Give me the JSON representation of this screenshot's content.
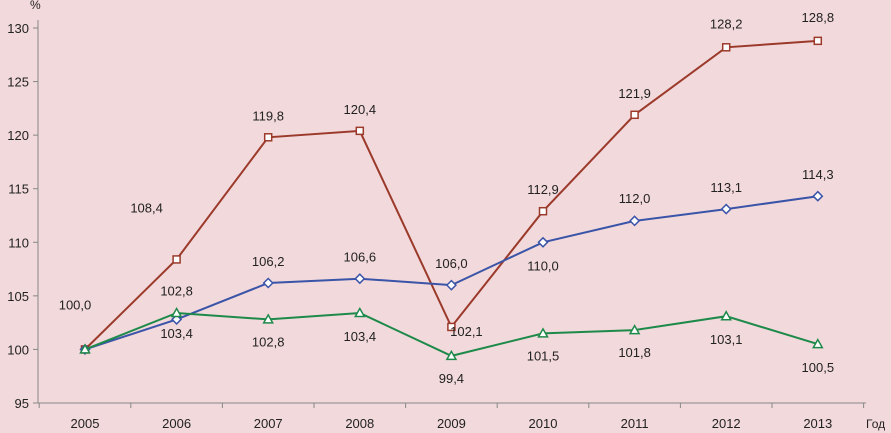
{
  "chart_data": {
    "type": "line",
    "title": "",
    "xlabel": "Год",
    "ylabel": "%",
    "ylim": [
      95,
      130
    ],
    "yticks": [
      95,
      100,
      105,
      110,
      115,
      120,
      125,
      130
    ],
    "grid": false,
    "legend": "none",
    "x": [
      "2005",
      "2006",
      "2007",
      "2008",
      "2009",
      "2010",
      "2011",
      "2012",
      "2013"
    ],
    "series": [
      {
        "color": "#9b3a2a",
        "marker": "square",
        "values": [
          100.0,
          108.4,
          119.8,
          120.4,
          102.1,
          112.9,
          121.9,
          128.2,
          128.8
        ],
        "labels": [
          "100,0",
          "108,4",
          "119,8",
          "120,4",
          "102,1",
          "112,9",
          "121,9",
          "128,2",
          "128,8"
        ]
      },
      {
        "color": "#3a54a8",
        "marker": "diamond",
        "values": [
          100.0,
          102.8,
          106.2,
          106.6,
          106.0,
          110.0,
          112.0,
          113.1,
          114.3
        ],
        "labels": [
          "",
          "102,8",
          "106,2",
          "106,6",
          "106,0",
          "110,0",
          "112,0",
          "113,1",
          "114,3"
        ]
      },
      {
        "color": "#1e8a4a",
        "marker": "triangle",
        "values": [
          100.0,
          103.4,
          102.8,
          103.4,
          99.4,
          101.5,
          101.8,
          103.1,
          100.5
        ],
        "labels": [
          "",
          "103,4",
          "102,8",
          "103,4",
          "99,4",
          "101,5",
          "101,8",
          "103,1",
          "100,5"
        ]
      }
    ]
  }
}
